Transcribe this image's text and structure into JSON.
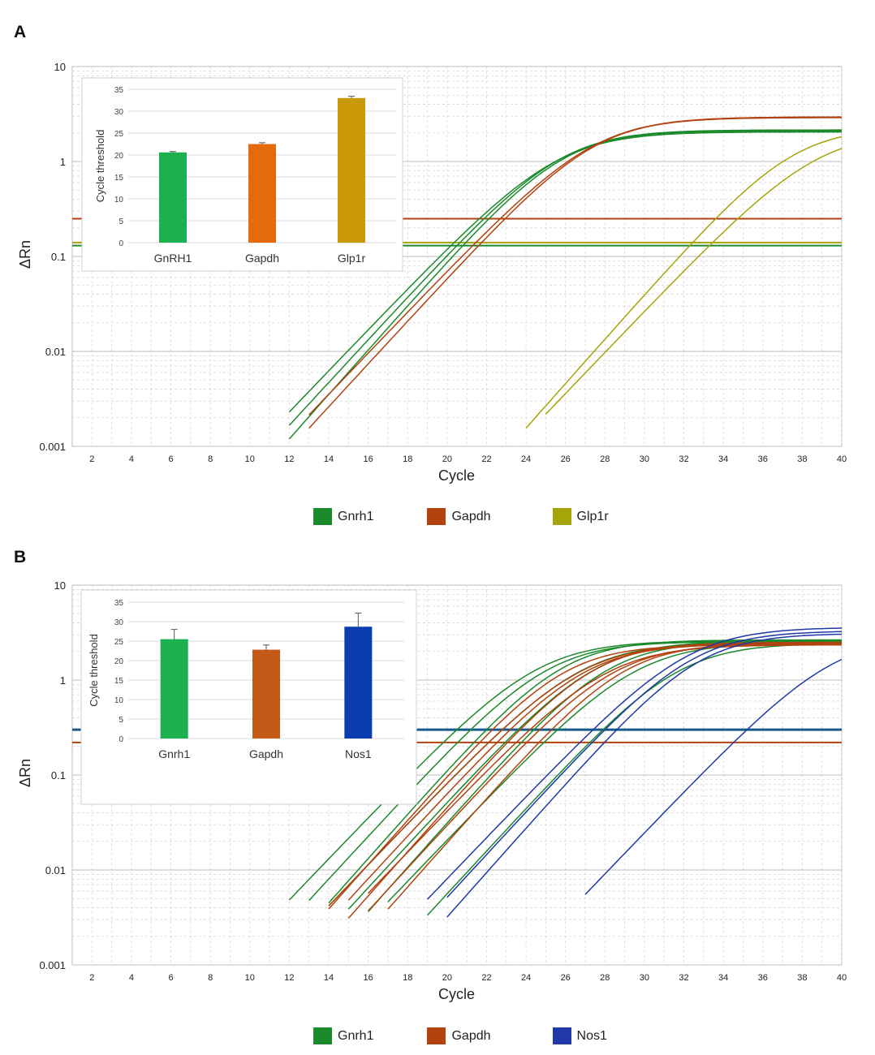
{
  "colors": {
    "gnrh1": "#1a8a2a",
    "gapdh": "#b2420e",
    "glp1r": "#a5a50a",
    "nos1": "#1f3aa8",
    "inset_gnrh1_bar": "#1cb04e",
    "inset_gapdh_bar_a": "#e46a0c",
    "inset_glp1r_bar": "#c99a05",
    "inset_gapdh_bar_b": "#c45a18",
    "inset_nos1_bar": "#0a3db0",
    "threshold_b_blue": "#1a5a8a",
    "grid": "#c9c9c9"
  },
  "panels": [
    {
      "label": "A",
      "chart_data": {
        "type": "line",
        "xlabel": "Cycle",
        "ylabel": "ΔRn",
        "yscale": "log",
        "ylim": [
          0.001,
          10
        ],
        "xlim": [
          1,
          40
        ],
        "x_ticks": [
          "2",
          "4",
          "6",
          "8",
          "10",
          "12",
          "14",
          "16",
          "18",
          "20",
          "22",
          "24",
          "26",
          "28",
          "30",
          "32",
          "34",
          "36",
          "38",
          "40"
        ],
        "y_ticks": [
          "0.001",
          "0.01",
          "0.1",
          "1",
          "10"
        ],
        "thresholds": [
          {
            "gene": "Gapdh",
            "value": 0.25
          },
          {
            "gene": "Glp1r",
            "value": 0.14
          },
          {
            "gene": "Gnrh1",
            "value": 0.13
          }
        ],
        "series": [
          {
            "name": "Gnrh1",
            "ct": 20.2,
            "plateau": 2.05
          },
          {
            "name": "Gnrh1",
            "ct": 20.5,
            "plateau": 2.15
          },
          {
            "name": "Gnrh1",
            "ct": 20.8,
            "plateau": 2.1
          },
          {
            "name": "Gapdh",
            "ct": 21.3,
            "plateau": 2.95
          },
          {
            "name": "Gapdh",
            "ct": 21.6,
            "plateau": 2.9
          },
          {
            "name": "Glp1r",
            "ct": 32.3,
            "plateau": 2.3
          },
          {
            "name": "Glp1r",
            "ct": 33.3,
            "plateau": 2.1
          }
        ],
        "legend": [
          "Gnrh1",
          "Gapdh",
          "Glp1r"
        ],
        "inset": {
          "type": "bar",
          "ylabel": "Cycle threshold",
          "ylim": [
            0,
            35
          ],
          "y_ticks": [
            "0",
            "5",
            "10",
            "15",
            "20",
            "25",
            "30",
            "35"
          ],
          "categories": [
            "GnRH1",
            "Gapdh",
            "Glp1r"
          ],
          "values": [
            20.6,
            22.5,
            33.0
          ],
          "errors": [
            0.2,
            0.3,
            0.4
          ]
        }
      }
    },
    {
      "label": "B",
      "chart_data": {
        "type": "line",
        "xlabel": "Cycle",
        "ylabel": "ΔRn",
        "yscale": "log",
        "ylim": [
          0.001,
          10
        ],
        "xlim": [
          1,
          40
        ],
        "x_ticks": [
          "2",
          "4",
          "6",
          "8",
          "10",
          "12",
          "14",
          "16",
          "18",
          "20",
          "22",
          "24",
          "26",
          "28",
          "30",
          "32",
          "34",
          "36",
          "38",
          "40"
        ],
        "y_ticks": [
          "0.001",
          "0.01",
          "0.1",
          "1",
          "10"
        ],
        "thresholds": [
          {
            "gene": "Gnrh1/Nos1",
            "value": 0.3
          },
          {
            "gene": "Gapdh",
            "value": 0.22
          }
        ],
        "series": [
          {
            "name": "Gnrh1",
            "ct": 20.5,
            "plateau": 2.6
          },
          {
            "name": "Gnrh1",
            "ct": 21.2,
            "plateau": 2.55
          },
          {
            "name": "Gnrh1",
            "ct": 22.0,
            "plateau": 2.65
          },
          {
            "name": "Gnrh1",
            "ct": 22.8,
            "plateau": 2.5
          },
          {
            "name": "Gnrh1",
            "ct": 23.6,
            "plateau": 2.6
          },
          {
            "name": "Gnrh1",
            "ct": 24.4,
            "plateau": 2.55
          },
          {
            "name": "Gnrh1",
            "ct": 25.6,
            "plateau": 2.5
          },
          {
            "name": "Gnrh1",
            "ct": 27.9,
            "plateau": 2.45
          },
          {
            "name": "Gapdh",
            "ct": 22.3,
            "plateau": 2.35
          },
          {
            "name": "Gapdh",
            "ct": 22.8,
            "plateau": 2.45
          },
          {
            "name": "Gapdh",
            "ct": 23.2,
            "plateau": 2.4
          },
          {
            "name": "Gapdh",
            "ct": 23.7,
            "plateau": 2.5
          },
          {
            "name": "Gapdh",
            "ct": 24.2,
            "plateau": 2.35
          },
          {
            "name": "Gapdh",
            "ct": 24.7,
            "plateau": 2.4
          },
          {
            "name": "Gapdh",
            "ct": 25.3,
            "plateau": 2.45
          },
          {
            "name": "Nos1",
            "ct": 27.4,
            "plateau": 3.6
          },
          {
            "name": "Nos1",
            "ct": 28.0,
            "plateau": 3.3
          },
          {
            "name": "Nos1",
            "ct": 28.6,
            "plateau": 3.1
          },
          {
            "name": "Nos1",
            "ct": 35.2,
            "plateau": 3.0
          }
        ],
        "legend": [
          "Gnrh1",
          "Gapdh",
          "Nos1"
        ],
        "inset": {
          "type": "bar",
          "ylabel": "Cycle threshold",
          "ylim": [
            0,
            35
          ],
          "y_ticks": [
            "0",
            "5",
            "10",
            "15",
            "20",
            "25",
            "30",
            "35"
          ],
          "categories": [
            "Gnrh1",
            "Gapdh",
            "Nos1"
          ],
          "values": [
            25.5,
            22.8,
            28.7
          ],
          "errors": [
            2.5,
            1.2,
            3.5
          ]
        }
      }
    }
  ]
}
